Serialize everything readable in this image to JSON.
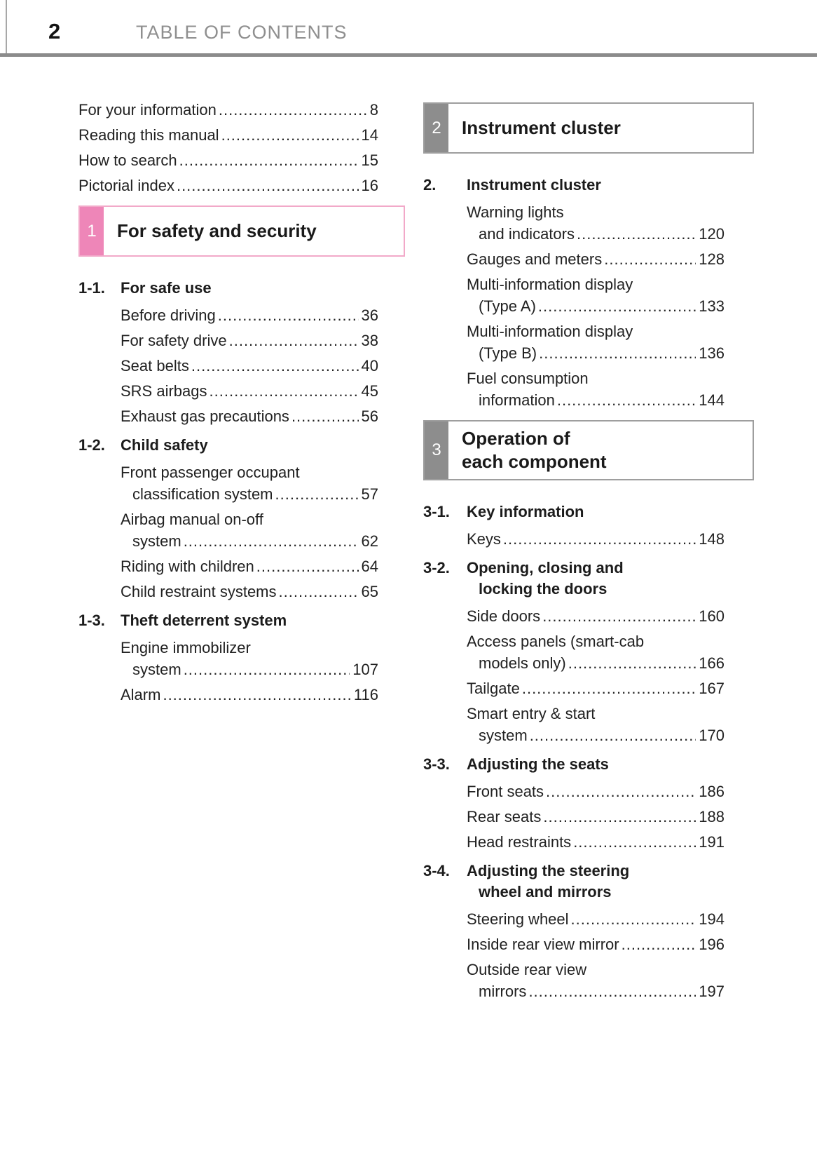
{
  "header": {
    "page_number": "2",
    "title": "TABLE OF CONTENTS"
  },
  "colors": {
    "header_rule": "#8b8b8b",
    "themes": {
      "pink": {
        "tab": "#ee86b8",
        "border": "#f2a9c9"
      },
      "gray": {
        "tab": "#8d8d8d",
        "border": "#9e9e9e"
      }
    }
  },
  "columns": {
    "left": [
      {
        "type": "frontmatter",
        "entries": [
          {
            "lines": [
              "For your information"
            ],
            "page": "8"
          },
          {
            "lines": [
              "Reading this manual"
            ],
            "page": "14"
          },
          {
            "lines": [
              "How to search"
            ],
            "page": "15"
          },
          {
            "lines": [
              "Pictorial index"
            ],
            "page": "16"
          }
        ]
      },
      {
        "type": "banner",
        "tab": "1",
        "theme": "pink",
        "title_lines": [
          "For safety and security"
        ]
      },
      {
        "type": "subsection",
        "number": "1-1.",
        "title_lines": [
          "For safe use"
        ],
        "entries": [
          {
            "lines": [
              "Before driving"
            ],
            "page": "36"
          },
          {
            "lines": [
              "For safety drive"
            ],
            "page": "38"
          },
          {
            "lines": [
              "Seat belts"
            ],
            "page": "40"
          },
          {
            "lines": [
              "SRS airbags"
            ],
            "page": "45"
          },
          {
            "lines": [
              "Exhaust gas precautions"
            ],
            "page": "56"
          }
        ]
      },
      {
        "type": "subsection",
        "number": "1-2.",
        "title_lines": [
          "Child safety"
        ],
        "entries": [
          {
            "lines": [
              "Front passenger occupant",
              "classification system"
            ],
            "page": "57"
          },
          {
            "lines": [
              "Airbag manual on-off",
              "system"
            ],
            "page": "62"
          },
          {
            "lines": [
              "Riding with children"
            ],
            "page": "64"
          },
          {
            "lines": [
              "Child restraint systems"
            ],
            "page": "65"
          }
        ]
      },
      {
        "type": "subsection",
        "number": "1-3.",
        "title_lines": [
          "Theft deterrent system"
        ],
        "entries": [
          {
            "lines": [
              "Engine immobilizer",
              "system"
            ],
            "page": "107"
          },
          {
            "lines": [
              "Alarm"
            ],
            "page": "116"
          }
        ]
      }
    ],
    "right": [
      {
        "type": "banner",
        "tab": "2",
        "theme": "gray",
        "title_lines": [
          "Instrument cluster"
        ]
      },
      {
        "type": "subsection",
        "number": "2.",
        "title_lines": [
          "Instrument cluster"
        ],
        "entries": [
          {
            "lines": [
              "Warning lights",
              "and indicators"
            ],
            "page": "120"
          },
          {
            "lines": [
              "Gauges and meters"
            ],
            "page": "128"
          },
          {
            "lines": [
              "Multi-information display",
              "(Type A)"
            ],
            "page": "133"
          },
          {
            "lines": [
              "Multi-information display",
              "(Type B)"
            ],
            "page": "136"
          },
          {
            "lines": [
              "Fuel consumption",
              "information"
            ],
            "page": "144"
          }
        ]
      },
      {
        "type": "banner",
        "tab": "3",
        "theme": "gray",
        "title_lines": [
          "Operation of",
          "each component"
        ]
      },
      {
        "type": "subsection",
        "number": "3-1.",
        "title_lines": [
          "Key information"
        ],
        "entries": [
          {
            "lines": [
              "Keys"
            ],
            "page": "148"
          }
        ]
      },
      {
        "type": "subsection",
        "number": "3-2.",
        "title_lines": [
          "Opening, closing and",
          "locking the doors"
        ],
        "entries": [
          {
            "lines": [
              "Side doors"
            ],
            "page": "160"
          },
          {
            "lines": [
              "Access panels (smart-cab",
              "models only)"
            ],
            "page": "166"
          },
          {
            "lines": [
              "Tailgate"
            ],
            "page": "167"
          },
          {
            "lines": [
              "Smart entry & start",
              "system"
            ],
            "page": "170"
          }
        ]
      },
      {
        "type": "subsection",
        "number": "3-3.",
        "title_lines": [
          "Adjusting the seats"
        ],
        "entries": [
          {
            "lines": [
              "Front seats"
            ],
            "page": "186"
          },
          {
            "lines": [
              "Rear seats"
            ],
            "page": "188"
          },
          {
            "lines": [
              "Head restraints"
            ],
            "page": "191"
          }
        ]
      },
      {
        "type": "subsection",
        "number": "3-4.",
        "title_lines": [
          "Adjusting the steering",
          "wheel and mirrors"
        ],
        "entries": [
          {
            "lines": [
              "Steering wheel"
            ],
            "page": "194"
          },
          {
            "lines": [
              "Inside rear view mirror"
            ],
            "page": "196"
          },
          {
            "lines": [
              "Outside rear view",
              "mirrors"
            ],
            "page": "197"
          }
        ]
      }
    ]
  }
}
